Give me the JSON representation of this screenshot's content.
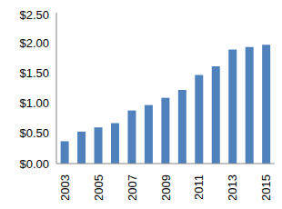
{
  "chart_data": {
    "type": "bar",
    "categories": [
      "2003",
      null,
      "2005",
      null,
      "2007",
      null,
      "2009",
      null,
      "2011",
      null,
      "2013",
      null,
      "2015"
    ],
    "values": [
      0.37,
      0.53,
      0.6,
      0.67,
      0.88,
      0.97,
      1.09,
      1.22,
      1.47,
      1.61,
      1.89,
      1.93,
      1.97
    ],
    "color": "#4f81bd",
    "ylim": [
      0,
      2.5
    ],
    "yticks": [
      {
        "value": 0,
        "label": "$0.00"
      },
      {
        "value": 0.5,
        "label": "$0.50"
      },
      {
        "value": 1,
        "label": "$1.00"
      },
      {
        "value": 1.5,
        "label": "$1.50"
      },
      {
        "value": 2,
        "label": "$2.00"
      },
      {
        "value": 2.5,
        "label": "$2.50"
      }
    ],
    "grid": false
  }
}
